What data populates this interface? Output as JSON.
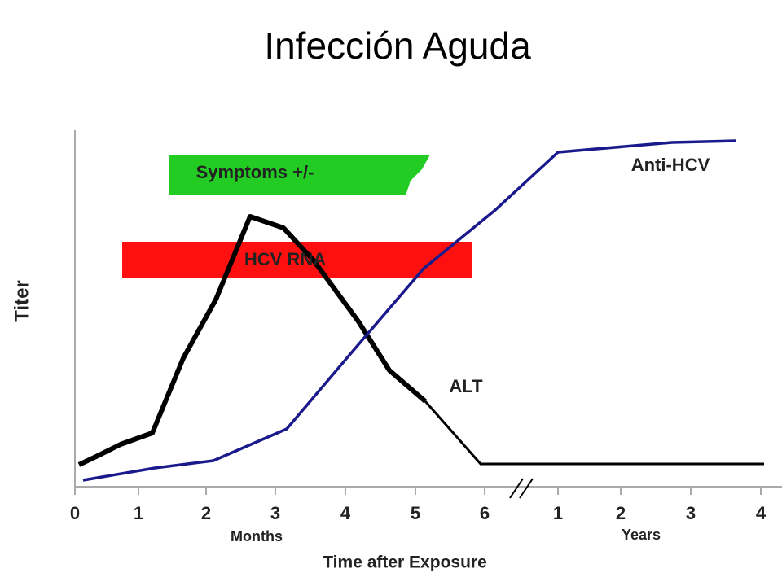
{
  "header": {
    "title": "Infección Aguda"
  },
  "axis": {
    "y_label": "Titer",
    "x_label": "Time after Exposure",
    "months_label": "Months",
    "years_label": "Years",
    "ticks": [
      "0",
      "1",
      "2",
      "3",
      "4",
      "5",
      "6",
      "1",
      "2",
      "3",
      "4"
    ]
  },
  "bars": [
    {
      "label": "Symptoms +/-"
    },
    {
      "label": "HCV RNA"
    }
  ],
  "curves": [
    {
      "label": "ALT"
    },
    {
      "label": "Anti-HCV"
    }
  ]
}
